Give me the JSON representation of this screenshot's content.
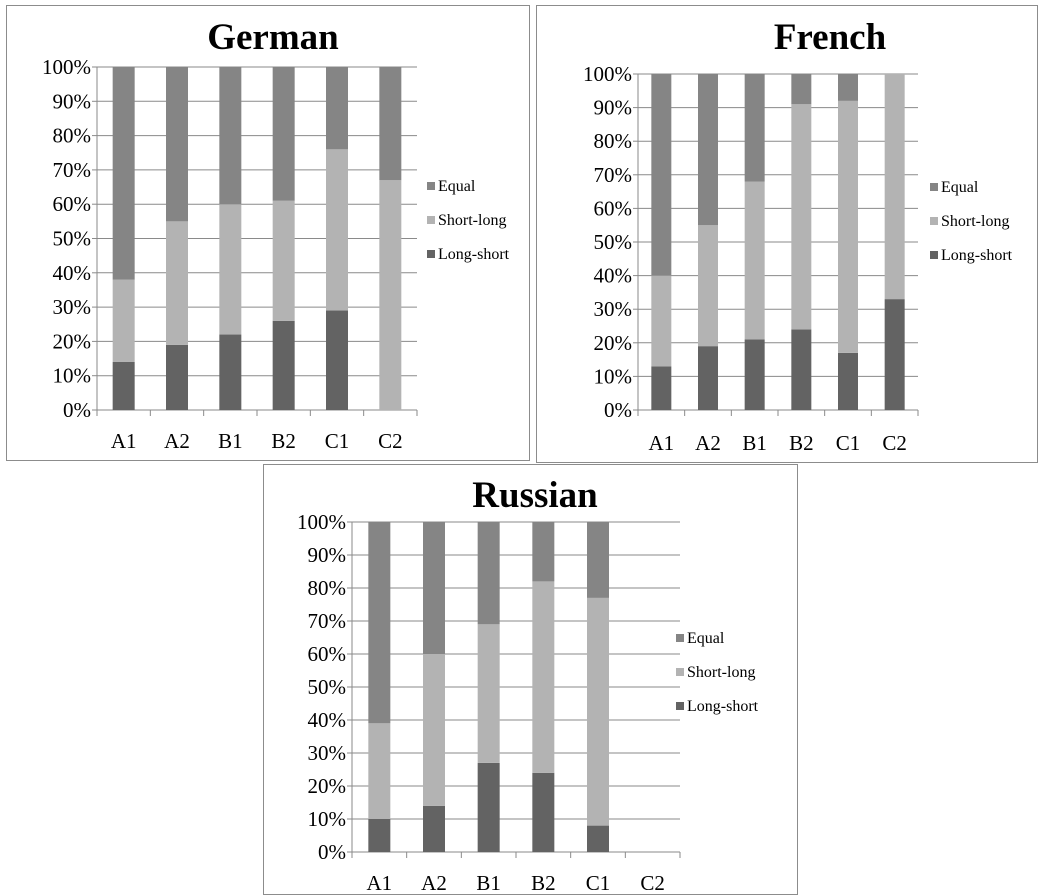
{
  "chart_data": [
    {
      "type": "bar",
      "stacked": true,
      "title": "German",
      "categories": [
        "A1",
        "A2",
        "B1",
        "B2",
        "C1",
        "C2"
      ],
      "series": [
        {
          "name": "Long-short",
          "values": [
            14,
            19,
            22,
            26,
            29,
            0
          ]
        },
        {
          "name": "Short-long",
          "values": [
            24,
            36,
            38,
            35,
            47,
            67
          ]
        },
        {
          "name": "Equal",
          "values": [
            62,
            45,
            40,
            39,
            24,
            33
          ]
        }
      ],
      "yticks": [
        "0%",
        "10%",
        "20%",
        "30%",
        "40%",
        "50%",
        "60%",
        "70%",
        "80%",
        "90%",
        "100%"
      ],
      "ylim": [
        0,
        100
      ],
      "legend": "right",
      "grid": true
    },
    {
      "type": "bar",
      "stacked": true,
      "title": "French",
      "categories": [
        "A1",
        "A2",
        "B1",
        "B2",
        "C1",
        "C2"
      ],
      "series": [
        {
          "name": "Long-short",
          "values": [
            13,
            19,
            21,
            24,
            17,
            33
          ]
        },
        {
          "name": "Short-long",
          "values": [
            27,
            36,
            47,
            67,
            75,
            67
          ]
        },
        {
          "name": "Equal",
          "values": [
            60,
            45,
            32,
            9,
            8,
            0
          ]
        }
      ],
      "yticks": [
        "0%",
        "10%",
        "20%",
        "30%",
        "40%",
        "50%",
        "60%",
        "70%",
        "80%",
        "90%",
        "100%"
      ],
      "ylim": [
        0,
        100
      ],
      "legend": "right",
      "grid": true
    },
    {
      "type": "bar",
      "stacked": true,
      "title": "Russian",
      "categories": [
        "A1",
        "A2",
        "B1",
        "B2",
        "C1",
        "C2"
      ],
      "series": [
        {
          "name": "Long-short",
          "values": [
            10,
            14,
            27,
            24,
            8,
            0
          ]
        },
        {
          "name": "Short-long",
          "values": [
            29,
            46,
            42,
            58,
            69,
            0
          ]
        },
        {
          "name": "Equal",
          "values": [
            61,
            40,
            31,
            18,
            23,
            0
          ]
        }
      ],
      "yticks": [
        "0%",
        "10%",
        "20%",
        "30%",
        "40%",
        "50%",
        "60%",
        "70%",
        "80%",
        "90%",
        "100%"
      ],
      "ylim": [
        0,
        100
      ],
      "legend": "right",
      "grid": true
    }
  ],
  "colors": {
    "Long-short": "#636363",
    "Short-long": "#b3b3b3",
    "Equal": "#858585",
    "gridline": "#8a8a8a",
    "axis": "#8a8a8a"
  }
}
